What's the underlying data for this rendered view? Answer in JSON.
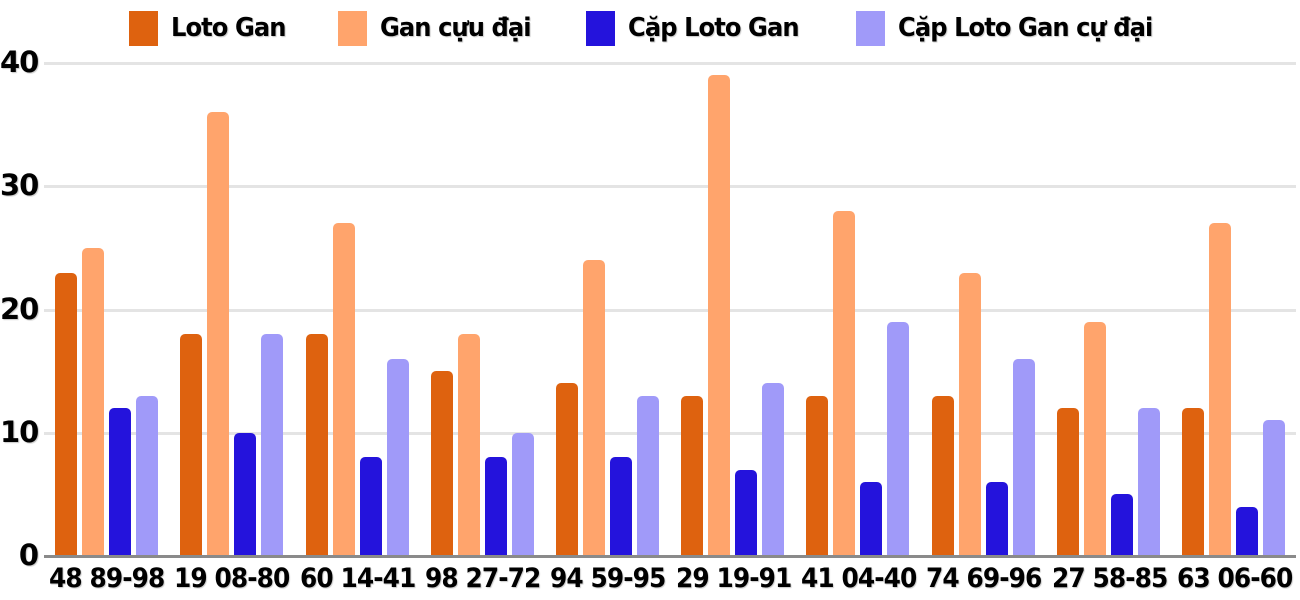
{
  "chart_data": {
    "type": "bar",
    "title": "",
    "xlabel": "",
    "ylabel": "",
    "ylim": [
      0,
      40
    ],
    "yticks": [
      0,
      10,
      20,
      30,
      40
    ],
    "grid": true,
    "legend_position": "top",
    "categories": [
      "48 89-98",
      "19 08-80",
      "60 14-41",
      "98 27-72",
      "94 59-95",
      "29 19-91",
      "41 04-40",
      "74 69-96",
      "27 58-85",
      "63 06-60"
    ],
    "series": [
      {
        "name": "Loto Gan",
        "color": "#DE620F",
        "values": [
          23,
          18,
          18,
          15,
          14,
          13,
          13,
          13,
          12,
          12
        ]
      },
      {
        "name": "Gan cựu đại",
        "color": "#FFA46C",
        "values": [
          25,
          36,
          27,
          18,
          24,
          39,
          28,
          23,
          19,
          27
        ]
      },
      {
        "name": "Cặp Loto Gan",
        "color": "#2413DC",
        "values": [
          12,
          10,
          8,
          8,
          8,
          7,
          6,
          6,
          5,
          4
        ]
      },
      {
        "name": "Cặp Loto Gan cự đại",
        "color": "#A09AF9",
        "values": [
          13,
          18,
          16,
          10,
          13,
          14,
          19,
          16,
          12,
          11
        ]
      }
    ],
    "grid_color": "#E4E4E4",
    "axis_line_color": "#8A8A8A",
    "text_color": "#000000"
  }
}
